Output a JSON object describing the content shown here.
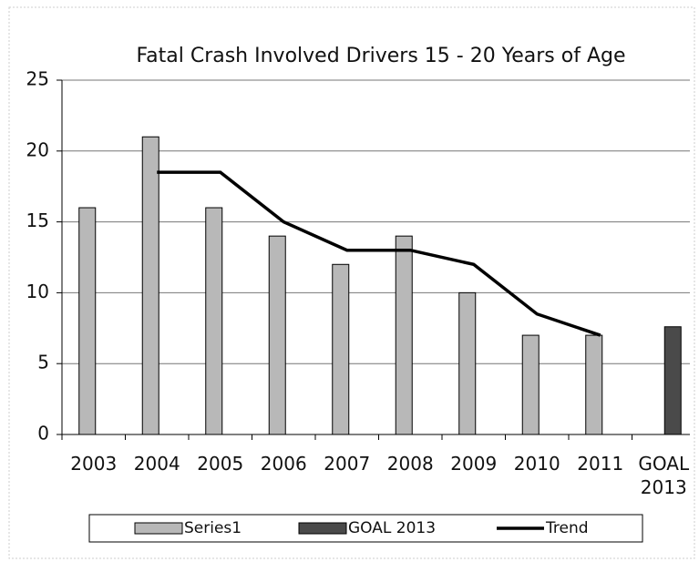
{
  "chart_data": {
    "type": "bar",
    "title": "Fatal Crash Involved  Drivers 15 - 20 Years of Age",
    "categories": [
      "2003",
      "2004",
      "2005",
      "2006",
      "2007",
      "2008",
      "2009",
      "2010",
      "2011",
      "GOAL 2013"
    ],
    "series": [
      {
        "name": "Series1",
        "color": "#b8b8b8",
        "values": [
          16,
          21,
          16,
          14,
          12,
          14,
          10,
          7,
          7,
          null
        ]
      },
      {
        "name": "GOAL 2013",
        "color": "#4a4a4a",
        "values": [
          null,
          null,
          null,
          null,
          null,
          null,
          null,
          null,
          null,
          7.6
        ]
      },
      {
        "name": "Trend",
        "type": "line",
        "color": "#000000",
        "values": [
          null,
          18.5,
          18.5,
          15,
          13,
          13,
          12,
          8.5,
          7,
          null
        ]
      }
    ],
    "ylim": [
      0,
      25
    ],
    "yticks": [
      0,
      5,
      10,
      15,
      20,
      25
    ],
    "grid": true,
    "legend": "bottom"
  }
}
